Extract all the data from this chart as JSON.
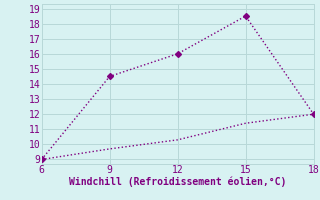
{
  "line1_x": [
    6,
    9,
    12,
    15,
    18
  ],
  "line1_y": [
    9,
    14.5,
    16,
    18.5,
    12
  ],
  "line2_x": [
    6,
    9,
    12,
    15,
    18
  ],
  "line2_y": [
    9,
    9.7,
    10.3,
    11.4,
    12
  ],
  "bg_color": "#d8f2f2",
  "xlabel": "Windchill (Refroidissement éolien,°C)",
  "xlim": [
    6,
    18
  ],
  "ylim": [
    8.7,
    19.3
  ],
  "xticks": [
    6,
    9,
    12,
    15,
    18
  ],
  "yticks": [
    9,
    10,
    11,
    12,
    13,
    14,
    15,
    16,
    17,
    18,
    19
  ],
  "grid_color": "#b8d8d8",
  "line_color": "#800080",
  "marker": "D",
  "markersize": 3,
  "linestyle": "dotted",
  "linewidth": 1.0
}
